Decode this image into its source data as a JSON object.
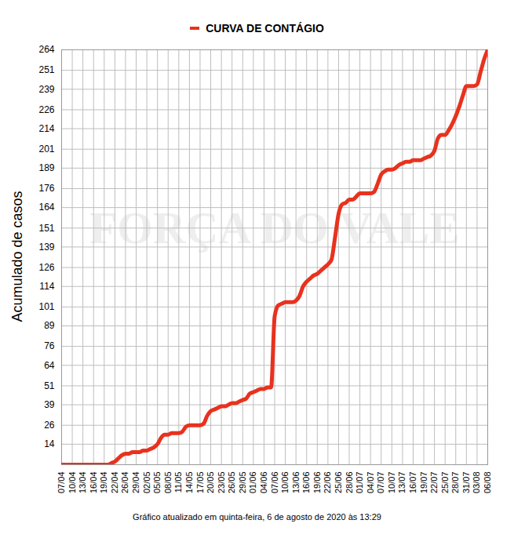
{
  "chart_data": {
    "type": "line",
    "y_label": "Acumulado de casos",
    "caption": "Gráfico atualizado em quinta-feira, 6 de agosto de 2020 às 13:29",
    "watermark": "FORÇA DO VALE",
    "x": [
      "07/04",
      null,
      null,
      "10/04",
      null,
      null,
      "13/04",
      null,
      null,
      "16/04",
      null,
      null,
      "19/04",
      null,
      null,
      "22/04",
      null,
      null,
      "26/04",
      null,
      null,
      "29/04",
      null,
      null,
      "02/05",
      null,
      null,
      "05/05",
      null,
      null,
      "08/05",
      null,
      null,
      "11/05",
      null,
      null,
      "14/05",
      null,
      null,
      "17/05",
      null,
      null,
      "20/05",
      null,
      null,
      "23/05",
      null,
      null,
      "26/05",
      null,
      null,
      "29/05",
      null,
      null,
      "01/06",
      null,
      null,
      "04/06",
      null,
      null,
      "07/06",
      null,
      null,
      "10/06",
      null,
      null,
      "13/06",
      null,
      null,
      "16/06",
      null,
      null,
      "19/06",
      null,
      null,
      "22/06",
      null,
      null,
      "25/06",
      null,
      null,
      "28/06",
      null,
      null,
      "01/07",
      null,
      null,
      "04/07",
      null,
      null,
      "07/07",
      null,
      null,
      "10/07",
      null,
      null,
      "13/07",
      null,
      null,
      "16/07",
      null,
      null,
      "19/07",
      null,
      null,
      "22/07",
      null,
      null,
      "25/07",
      null,
      null,
      "28/07",
      null,
      null,
      "31/07",
      null,
      null,
      "03/08",
      null,
      null,
      "06/08"
    ],
    "series": [
      {
        "name": "CURVA DE CONTÁGIO",
        "color": "#e8321e",
        "values": [
          1,
          1,
          1,
          1,
          1,
          1,
          1,
          1,
          1,
          1,
          1,
          1,
          1,
          1,
          2,
          3,
          5,
          7,
          8,
          8,
          9,
          9,
          9,
          10,
          10,
          11,
          12,
          14,
          18,
          20,
          20,
          21,
          21,
          21,
          22,
          25,
          26,
          26,
          26,
          26,
          27,
          32,
          35,
          36,
          37,
          38,
          38,
          39,
          40,
          40,
          41,
          42,
          43,
          46,
          47,
          48,
          49,
          49,
          50,
          50,
          95,
          102,
          103,
          104,
          104,
          104,
          105,
          108,
          114,
          117,
          119,
          121,
          122,
          124,
          126,
          128,
          131,
          145,
          160,
          166,
          167,
          169,
          169,
          171,
          173,
          173,
          173,
          173,
          174,
          179,
          185,
          187,
          188,
          188,
          189,
          191,
          192,
          193,
          193,
          194,
          194,
          194,
          195,
          196,
          197,
          200,
          208,
          210,
          210,
          213,
          217,
          222,
          228,
          235,
          241,
          241,
          241,
          242,
          250,
          258,
          264
        ]
      }
    ],
    "ylim": [
      1,
      264
    ],
    "yticks": [
      14,
      26,
      39,
      51,
      64,
      76,
      89,
      101,
      114,
      126,
      139,
      151,
      164,
      176,
      189,
      201,
      214,
      226,
      239,
      251,
      264
    ],
    "grid": true,
    "legend": "top"
  }
}
